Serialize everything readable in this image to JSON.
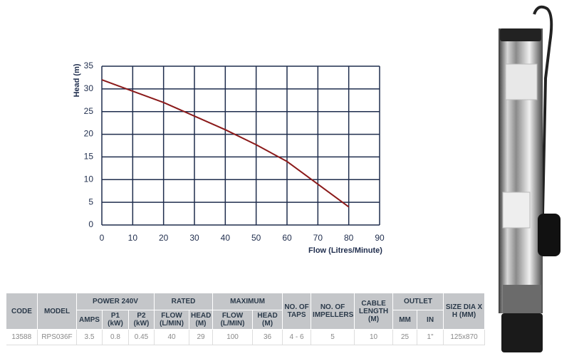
{
  "chart_data": {
    "type": "line",
    "x": [
      0,
      10,
      20,
      30,
      40,
      50,
      60,
      70,
      80
    ],
    "values": [
      32,
      29.5,
      27,
      24,
      21,
      17.7,
      14,
      9,
      4
    ],
    "color": "#8b1a1a",
    "xlabel": "Flow (Litres/Minute)",
    "ylabel": "Head (m)",
    "xlim": [
      0,
      90
    ],
    "xticks": [
      0,
      10,
      20,
      30,
      40,
      50,
      60,
      70,
      80,
      90
    ],
    "ylim": [
      0,
      35
    ],
    "yticks": [
      0,
      5,
      10,
      15,
      20,
      25,
      30,
      35
    ],
    "grid": true
  },
  "table": {
    "header1": [
      "CODE",
      "MODEL",
      "POWER 240V",
      "RATED",
      "MAXIMUM",
      "NO. OF TAPS",
      "NO. OF IMPELLERS",
      "CABLE LENGTH (M)",
      "OUTLET",
      "SIZE DIA X H (MM)"
    ],
    "header2": [
      "AMPS",
      "P1 (kW)",
      "P2 (kW)",
      "FLOW (L/MIN)",
      "HEAD (M)",
      "FLOW (L/MIN)",
      "HEAD (M)",
      "MM",
      "IN"
    ],
    "rows": [
      [
        "13588",
        "RPS036F",
        "3.5",
        "0.8",
        "0.45",
        "40",
        "29",
        "100",
        "36",
        "4 - 6",
        "5",
        "10",
        "25",
        "1\"",
        "125x870"
      ]
    ]
  }
}
